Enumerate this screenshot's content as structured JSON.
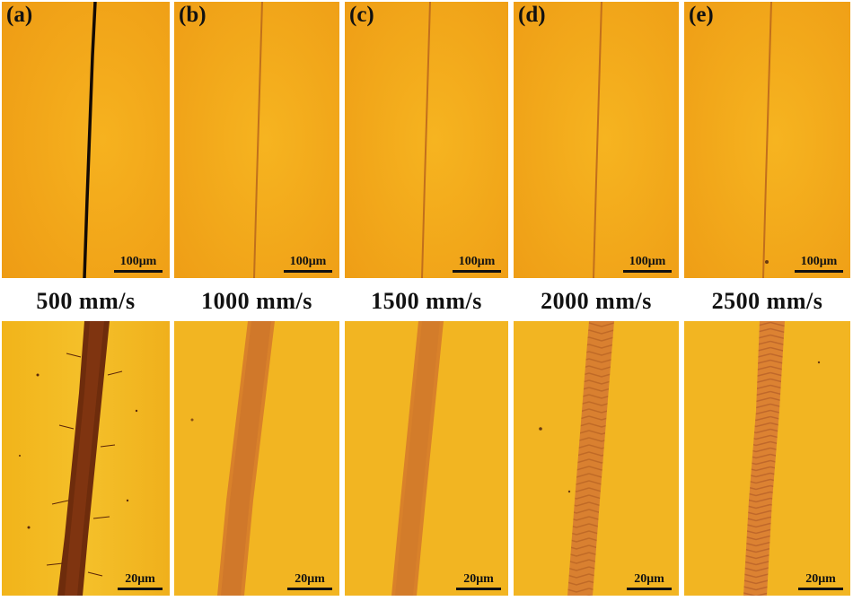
{
  "panels": [
    {
      "label": "(a)",
      "speed": "500 mm/s",
      "scale_top": "100μm",
      "scale_bottom": "20μm"
    },
    {
      "label": "(b)",
      "speed": "1000 mm/s",
      "scale_top": "100μm",
      "scale_bottom": "20μm"
    },
    {
      "label": "(c)",
      "speed": "1500 mm/s",
      "scale_top": "100μm",
      "scale_bottom": "20μm"
    },
    {
      "label": "(d)",
      "speed": "2000 mm/s",
      "scale_top": "100μm",
      "scale_bottom": "20μm"
    },
    {
      "label": "(e)",
      "speed": "2500 mm/s",
      "scale_top": "100μm",
      "scale_bottom": "20μm"
    }
  ],
  "colors": {
    "background_orange": "#f2a31c",
    "background_yellow": "#f0b81e",
    "track_dark": "#1a0e05",
    "track_brown": "#7a3a12",
    "track_orange": "#d8822a"
  }
}
